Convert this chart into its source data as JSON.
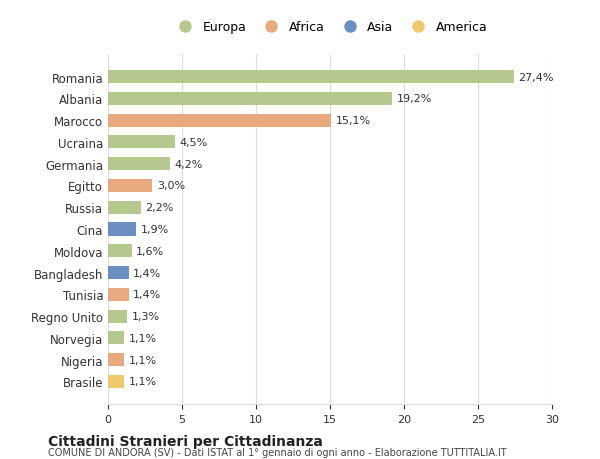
{
  "countries": [
    "Romania",
    "Albania",
    "Marocco",
    "Ucraina",
    "Germania",
    "Egitto",
    "Russia",
    "Cina",
    "Moldova",
    "Bangladesh",
    "Tunisia",
    "Regno Unito",
    "Norvegia",
    "Nigeria",
    "Brasile"
  ],
  "values": [
    27.4,
    19.2,
    15.1,
    4.5,
    4.2,
    3.0,
    2.2,
    1.9,
    1.6,
    1.4,
    1.4,
    1.3,
    1.1,
    1.1,
    1.1
  ],
  "labels": [
    "27,4%",
    "19,2%",
    "15,1%",
    "4,5%",
    "4,2%",
    "3,0%",
    "2,2%",
    "1,9%",
    "1,6%",
    "1,4%",
    "1,4%",
    "1,3%",
    "1,1%",
    "1,1%",
    "1,1%"
  ],
  "continents": [
    "Europa",
    "Europa",
    "Africa",
    "Europa",
    "Europa",
    "Africa",
    "Europa",
    "Asia",
    "Europa",
    "Asia",
    "Africa",
    "Europa",
    "Europa",
    "Africa",
    "America"
  ],
  "colors": {
    "Europa": "#b5c98e",
    "Africa": "#e8a97e",
    "Asia": "#6a8fc0",
    "America": "#f0c96e"
  },
  "legend_order": [
    "Europa",
    "Africa",
    "Asia",
    "America"
  ],
  "title": "Cittadini Stranieri per Cittadinanza",
  "subtitle": "COMUNE DI ANDORA (SV) - Dati ISTAT al 1° gennaio di ogni anno - Elaborazione TUTTITALIA.IT",
  "xlim": [
    0,
    30
  ],
  "xticks": [
    0,
    5,
    10,
    15,
    20,
    25,
    30
  ],
  "background_color": "#ffffff",
  "grid_color": "#dddddd"
}
